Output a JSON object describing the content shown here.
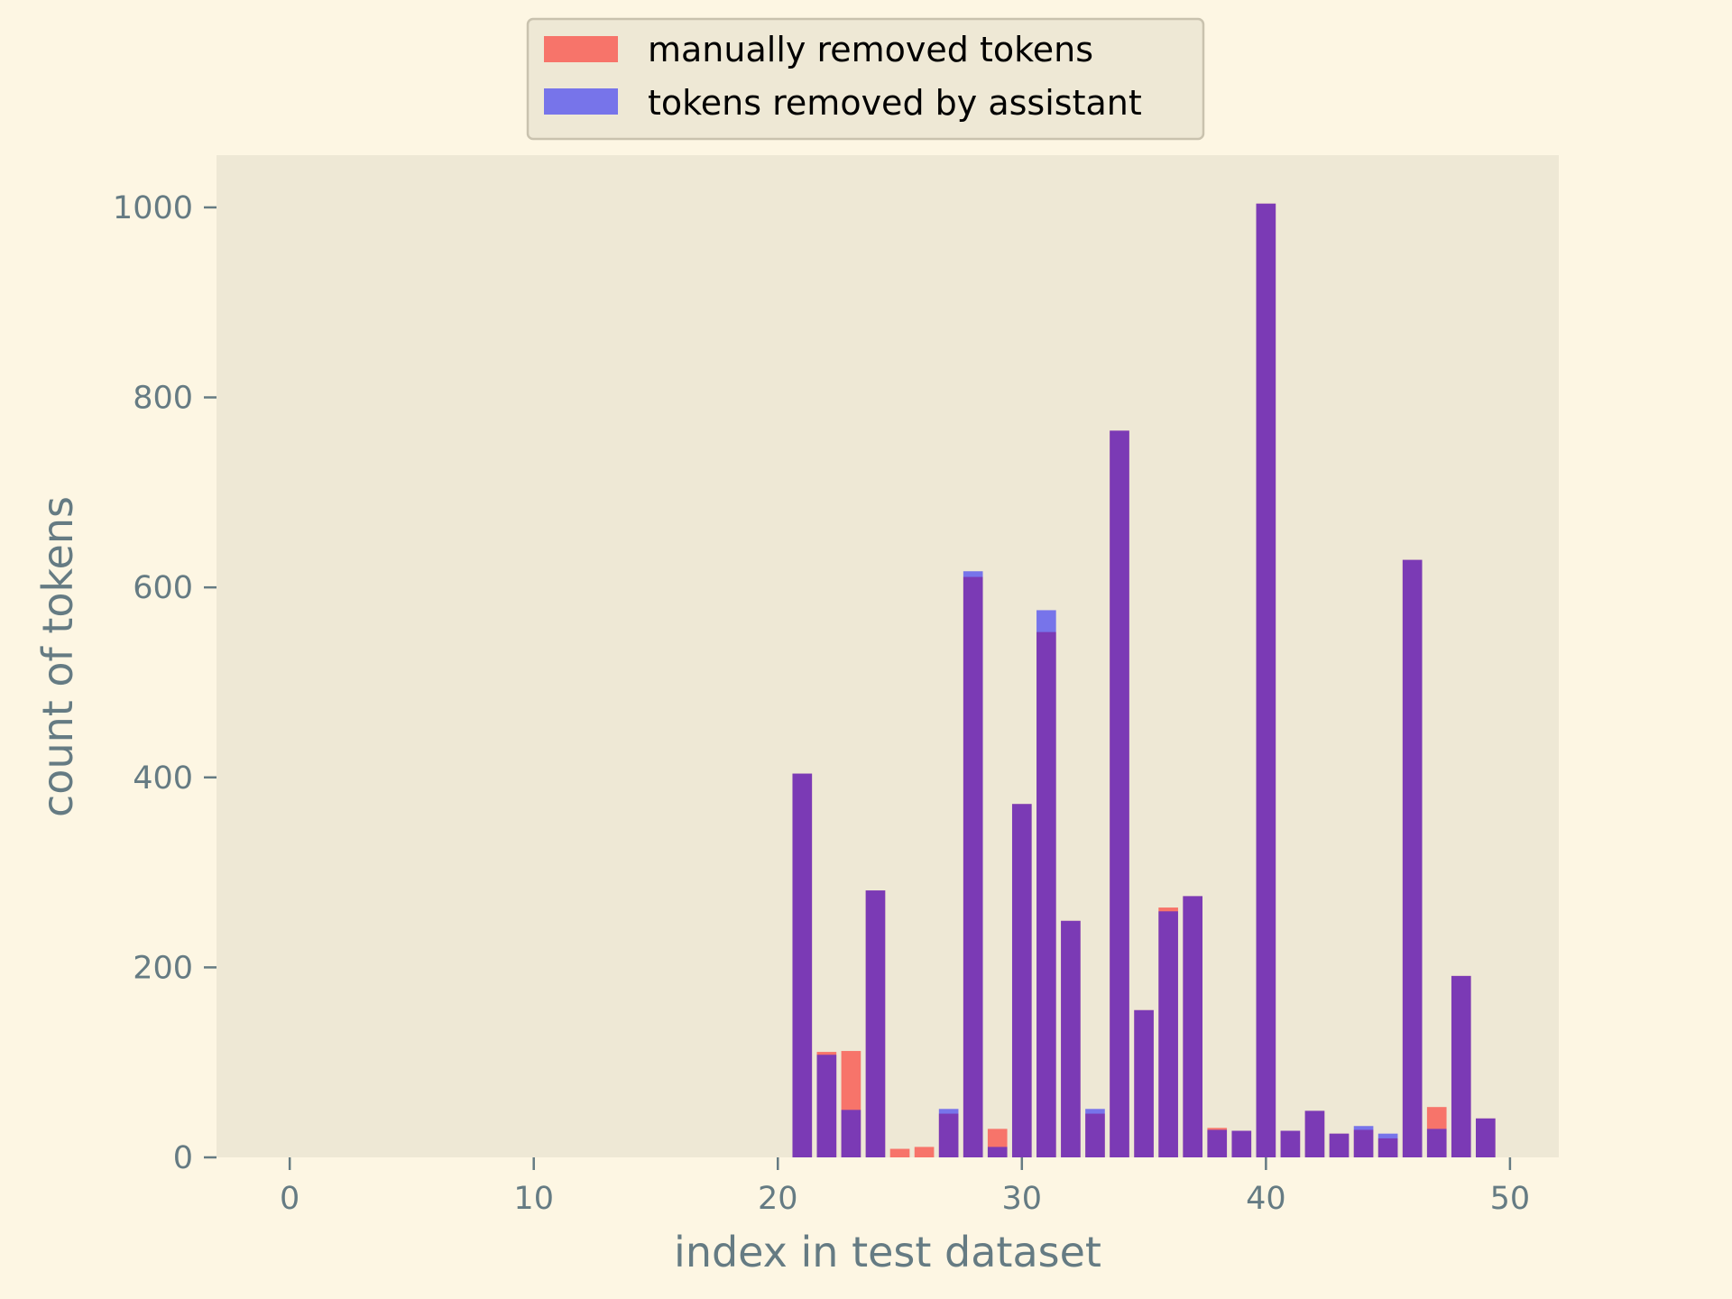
{
  "chart_data": {
    "type": "bar",
    "xlabel": "index in test dataset",
    "ylabel": "count of tokens",
    "xlim": [
      -3,
      52
    ],
    "ylim": [
      0,
      1055
    ],
    "x_ticks": [
      0,
      10,
      20,
      30,
      40,
      50
    ],
    "y_ticks": [
      0,
      200,
      400,
      600,
      800,
      1000
    ],
    "grid": false,
    "legend_position": "top-center",
    "background": "#fdf6e3",
    "plot_background": "#eee8d5",
    "x": [
      0,
      1,
      2,
      3,
      4,
      5,
      6,
      7,
      8,
      9,
      10,
      11,
      12,
      13,
      14,
      15,
      16,
      17,
      18,
      19,
      20,
      21,
      22,
      23,
      24,
      25,
      26,
      27,
      28,
      29,
      30,
      31,
      32,
      33,
      34,
      35,
      36,
      37,
      38,
      39,
      40,
      41,
      42,
      43,
      44,
      45,
      46,
      47,
      48,
      49
    ],
    "series": [
      {
        "name": "manually removed tokens",
        "color": "#ff0000",
        "alpha": 0.5,
        "values": [
          0,
          0,
          0,
          0,
          0,
          0,
          0,
          0,
          0,
          0,
          0,
          0,
          0,
          0,
          0,
          0,
          0,
          0,
          0,
          0,
          0,
          404,
          111,
          112,
          281,
          9,
          11,
          46,
          611,
          30,
          372,
          553,
          249,
          46,
          765,
          155,
          263,
          275,
          31,
          28,
          1004,
          28,
          49,
          25,
          29,
          20,
          629,
          53,
          191,
          41
        ]
      },
      {
        "name": "tokens removed by assistant",
        "color": "#0000ff",
        "alpha": 0.5,
        "values": [
          0,
          0,
          0,
          0,
          0,
          0,
          0,
          0,
          0,
          0,
          0,
          0,
          0,
          0,
          0,
          0,
          0,
          0,
          0,
          0,
          0,
          404,
          108,
          50,
          281,
          0,
          0,
          51,
          617,
          11,
          372,
          576,
          249,
          51,
          765,
          155,
          259,
          275,
          29,
          28,
          1004,
          28,
          49,
          25,
          33,
          25,
          629,
          30,
          191,
          41
        ]
      }
    ]
  }
}
